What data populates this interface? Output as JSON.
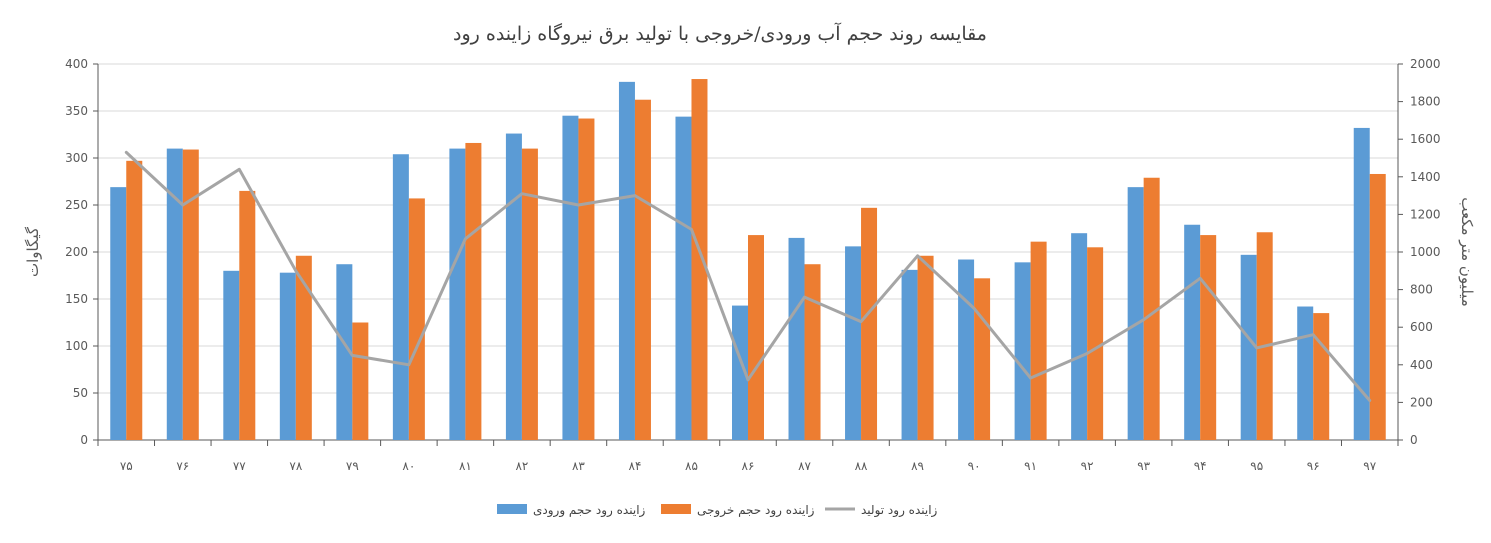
{
  "chart_data": {
    "type": "bar",
    "title": "مقایسه روند حجم آب ورودی/خروجی با تولید برق نیروگاه زاینده رود",
    "ylabel_left": "گیگاوات",
    "ylabel_right": "میلیون متر مکعب",
    "categories": [
      "۷۵",
      "۷۶",
      "۷۷",
      "۷۸",
      "۷۹",
      "۸۰",
      "۸۱",
      "۸۲",
      "۸۳",
      "۸۴",
      "۸۵",
      "۸۶",
      "۸۷",
      "۸۸",
      "۸۹",
      "۹۰",
      "۹۱",
      "۹۲",
      "۹۳",
      "۹۴",
      "۹۵",
      "۹۶",
      "۹۷"
    ],
    "ylim_left": [
      0,
      400
    ],
    "yticks_left": [
      0,
      50,
      100,
      150,
      200,
      250,
      300,
      350,
      400
    ],
    "ylim_right": [
      0,
      2000
    ],
    "yticks_right": [
      0,
      200,
      400,
      600,
      800,
      1000,
      1200,
      1400,
      1600,
      1800,
      2000
    ],
    "grid": true,
    "legend_position": "bottom",
    "series": [
      {
        "name": "زاینده رود حجم ورودی",
        "kind": "bar",
        "axis": "left",
        "color": "#5B9BD5",
        "values": [
          269,
          310,
          180,
          178,
          187,
          304,
          310,
          326,
          345,
          381,
          344,
          143,
          215,
          206,
          181,
          192,
          189,
          220,
          269,
          229,
          197,
          142,
          332
        ]
      },
      {
        "name": "زاینده رود حجم خروجی",
        "kind": "bar",
        "axis": "left",
        "color": "#ED7D31",
        "values": [
          297,
          309,
          265,
          196,
          125,
          257,
          316,
          310,
          342,
          362,
          384,
          218,
          187,
          247,
          196,
          172,
          211,
          205,
          279,
          218,
          221,
          135,
          283
        ]
      },
      {
        "name": "زاینده رود تولید",
        "kind": "line",
        "axis": "right",
        "color": "#A5A5A5",
        "values": [
          1530,
          1250,
          1440,
          900,
          450,
          400,
          1070,
          1310,
          1250,
          1300,
          1120,
          320,
          760,
          630,
          980,
          700,
          330,
          460,
          640,
          860,
          490,
          560,
          210
        ]
      }
    ]
  }
}
